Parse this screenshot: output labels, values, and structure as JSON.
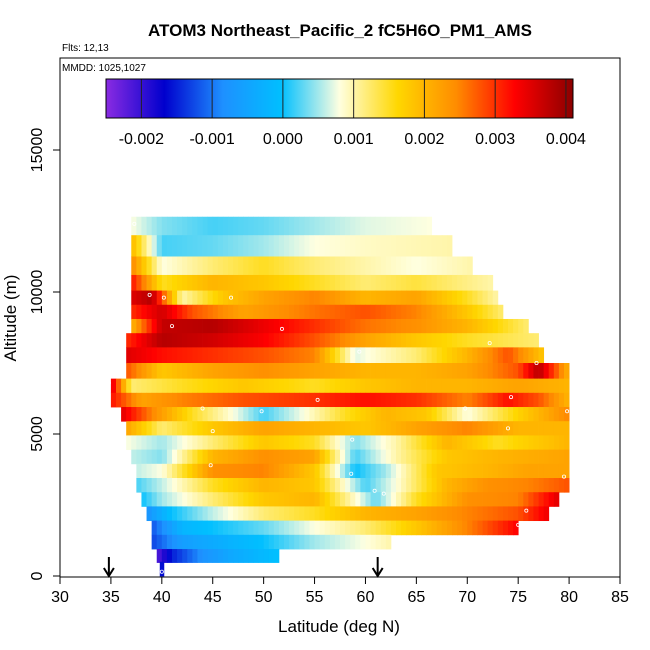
{
  "chart_data": {
    "type": "heatmap",
    "title": "ATOM3 Northeast_Pacific_2 fC5H6O_PM1_AMS",
    "flights_label": "Flts: 12,13",
    "dates_label": "MMDD: 1025,1027",
    "xlabel": "Latitude (deg N)",
    "ylabel": "Altitude (m)",
    "xlim": [
      30,
      85
    ],
    "ylim": [
      0,
      17500
    ],
    "x_ticks": [
      "30",
      "35",
      "40",
      "45",
      "50",
      "55",
      "60",
      "65",
      "70",
      "75",
      "80",
      "85"
    ],
    "y_ticks": [
      "0",
      "5000",
      "10000",
      "15000"
    ],
    "colorbar": {
      "range": [
        -0.0025,
        0.0041
      ],
      "ticks": [
        "-0.002",
        "-0.001",
        "0.000",
        "0.001",
        "0.002",
        "0.003",
        "0.004"
      ],
      "colors": [
        "#8a2be2",
        "#0000cd",
        "#1e90ff",
        "#00bfff",
        "#ffffe0",
        "#ffd700",
        "#ff8c00",
        "#ff0000",
        "#8b0000"
      ]
    },
    "arrows_latitude": [
      34.8,
      61.2
    ],
    "layers": [
      {
        "alt": 12400,
        "lat_min": 37.0,
        "lat_max": 66.5,
        "values": [
          [
            37,
            0.0008
          ],
          [
            40,
            0.0004
          ],
          [
            45,
            0.0002
          ],
          [
            50,
            0.0003
          ],
          [
            55,
            0.0005
          ],
          [
            60,
            0.0007
          ],
          [
            66.5,
            0.0008
          ]
        ]
      },
      {
        "alt": 11600,
        "lat_min": 37.0,
        "lat_max": 68.5,
        "values": [
          [
            37,
            0.002
          ],
          [
            40,
            0.0002
          ],
          [
            45,
            0.0003
          ],
          [
            50,
            0.0005
          ],
          [
            55,
            0.0008
          ],
          [
            60,
            0.0009
          ],
          [
            68.5,
            0.001
          ]
        ]
      },
      {
        "alt": 10900,
        "lat_min": 37.0,
        "lat_max": 70.5,
        "values": [
          [
            37,
            0.0025
          ],
          [
            40,
            0.0008
          ],
          [
            45,
            0.0012
          ],
          [
            50,
            0.0015
          ],
          [
            55,
            0.0012
          ],
          [
            60,
            0.001
          ],
          [
            65,
            0.0008
          ],
          [
            70.5,
            0.001
          ]
        ]
      },
      {
        "alt": 10300,
        "lat_min": 37.0,
        "lat_max": 72.5,
        "values": [
          [
            37,
            0.0032
          ],
          [
            40,
            0.0015
          ],
          [
            45,
            0.002
          ],
          [
            50,
            0.0018
          ],
          [
            55,
            0.0015
          ],
          [
            60,
            0.0012
          ],
          [
            65,
            0.0014
          ],
          [
            72.5,
            0.001
          ]
        ]
      },
      {
        "alt": 9800,
        "lat_min": 37.0,
        "lat_max": 73.0,
        "values": [
          [
            37,
            0.0035
          ],
          [
            39,
            0.0038
          ],
          [
            42,
            0.001
          ],
          [
            46,
            0.0018
          ],
          [
            50,
            0.0022
          ],
          [
            55,
            0.0025
          ],
          [
            60,
            0.002
          ],
          [
            65,
            0.0022
          ],
          [
            70,
            0.0015
          ],
          [
            73,
            0.001
          ]
        ]
      },
      {
        "alt": 9300,
        "lat_min": 37.0,
        "lat_max": 73.5,
        "values": [
          [
            37,
            0.003
          ],
          [
            40,
            0.0036
          ],
          [
            43,
            0.0028
          ],
          [
            48,
            0.0022
          ],
          [
            55,
            0.0026
          ],
          [
            60,
            0.0028
          ],
          [
            65,
            0.0025
          ],
          [
            70,
            0.0018
          ],
          [
            73.5,
            0.0012
          ]
        ]
      },
      {
        "alt": 8800,
        "lat_min": 37.0,
        "lat_max": 76.0,
        "values": [
          [
            37,
            0.002
          ],
          [
            40,
            0.0037
          ],
          [
            45,
            0.0038
          ],
          [
            50,
            0.0034
          ],
          [
            55,
            0.003
          ],
          [
            60,
            0.0026
          ],
          [
            65,
            0.0024
          ],
          [
            70,
            0.002
          ],
          [
            76,
            0.0012
          ]
        ]
      },
      {
        "alt": 8300,
        "lat_min": 36.5,
        "lat_max": 77.0,
        "values": [
          [
            36.5,
            0.003
          ],
          [
            40,
            0.0038
          ],
          [
            45,
            0.0036
          ],
          [
            50,
            0.0033
          ],
          [
            55,
            0.0028
          ],
          [
            60,
            0.0022
          ],
          [
            65,
            0.0018
          ],
          [
            70,
            0.0015
          ],
          [
            77,
            0.0012
          ]
        ]
      },
      {
        "alt": 7800,
        "lat_min": 36.5,
        "lat_max": 77.5,
        "values": [
          [
            36.5,
            0.0035
          ],
          [
            40,
            0.0032
          ],
          [
            45,
            0.003
          ],
          [
            50,
            0.0028
          ],
          [
            55,
            0.0025
          ],
          [
            59,
            0.0007
          ],
          [
            65,
            0.0012
          ],
          [
            70,
            0.002
          ],
          [
            74,
            0.0028
          ],
          [
            77.5,
            0.0018
          ]
        ]
      },
      {
        "alt": 7200,
        "lat_min": 36.5,
        "lat_max": 80.0,
        "values": [
          [
            36.5,
            0.0028
          ],
          [
            40,
            0.0018
          ],
          [
            45,
            0.0022
          ],
          [
            50,
            0.0024
          ],
          [
            55,
            0.0022
          ],
          [
            60,
            0.002
          ],
          [
            65,
            0.002
          ],
          [
            70,
            0.0022
          ],
          [
            75,
            0.0028
          ],
          [
            77,
            0.0038
          ],
          [
            80,
            0.002
          ]
        ]
      },
      {
        "alt": 6700,
        "lat_min": 35.0,
        "lat_max": 80.0,
        "values": [
          [
            35,
            0.0036
          ],
          [
            37,
            0.0012
          ],
          [
            42,
            0.0015
          ],
          [
            48,
            0.0018
          ],
          [
            55,
            0.0015
          ],
          [
            60,
            0.0018
          ],
          [
            65,
            0.002
          ],
          [
            70,
            0.002
          ],
          [
            75,
            0.0022
          ],
          [
            80,
            0.002
          ]
        ]
      },
      {
        "alt": 6200,
        "lat_min": 35.0,
        "lat_max": 80.0,
        "values": [
          [
            35,
            0.0032
          ],
          [
            38,
            0.0022
          ],
          [
            42,
            0.0025
          ],
          [
            48,
            0.0028
          ],
          [
            55,
            0.003
          ],
          [
            60,
            0.0032
          ],
          [
            65,
            0.003
          ],
          [
            70,
            0.0025
          ],
          [
            74,
            0.0032
          ],
          [
            77,
            0.0028
          ],
          [
            80,
            0.002
          ]
        ]
      },
      {
        "alt": 5700,
        "lat_min": 36.0,
        "lat_max": 80.0,
        "values": [
          [
            36,
            0.0035
          ],
          [
            39,
            0.0025
          ],
          [
            43,
            0.0015
          ],
          [
            47,
            0.0008
          ],
          [
            50,
            0.0002
          ],
          [
            54,
            0.0008
          ],
          [
            58,
            0.0015
          ],
          [
            62,
            0.002
          ],
          [
            66,
            0.0018
          ],
          [
            70,
            0.0008
          ],
          [
            74,
            0.0015
          ],
          [
            80,
            0.0025
          ]
        ]
      },
      {
        "alt": 5200,
        "lat_min": 36.5,
        "lat_max": 80.0,
        "values": [
          [
            36.5,
            0.0022
          ],
          [
            40,
            0.0012
          ],
          [
            45,
            0.0018
          ],
          [
            50,
            0.0022
          ],
          [
            55,
            0.002
          ],
          [
            60,
            0.0018
          ],
          [
            65,
            0.0022
          ],
          [
            70,
            0.0025
          ],
          [
            75,
            0.002
          ],
          [
            80,
            0.002
          ]
        ]
      },
      {
        "alt": 4700,
        "lat_min": 36.5,
        "lat_max": 80.0,
        "values": [
          [
            36.5,
            0.0008
          ],
          [
            40,
            0.0005
          ],
          [
            45,
            0.0012
          ],
          [
            50,
            0.0018
          ],
          [
            55,
            0.0015
          ],
          [
            59,
            0.0004
          ],
          [
            63,
            0.001
          ],
          [
            68,
            0.002
          ],
          [
            73,
            0.0015
          ],
          [
            77,
            0.0018
          ],
          [
            80,
            0.002
          ]
        ]
      },
      {
        "alt": 4200,
        "lat_min": 37.0,
        "lat_max": 80.0,
        "values": [
          [
            37,
            0.0006
          ],
          [
            40,
            0.0004
          ],
          [
            45,
            0.002
          ],
          [
            50,
            0.0024
          ],
          [
            55,
            0.0022
          ],
          [
            59,
            0.0002
          ],
          [
            63,
            0.001
          ],
          [
            68,
            0.0018
          ],
          [
            73,
            0.002
          ],
          [
            80,
            0.0022
          ]
        ]
      },
      {
        "alt": 3700,
        "lat_min": 37.5,
        "lat_max": 80.0,
        "values": [
          [
            37.5,
            0.0006
          ],
          [
            40,
            0.0008
          ],
          [
            45,
            0.0024
          ],
          [
            50,
            0.0025
          ],
          [
            55,
            0.0018
          ],
          [
            59,
            0.0
          ],
          [
            62,
            0.0005
          ],
          [
            67,
            0.0018
          ],
          [
            72,
            0.002
          ],
          [
            76,
            0.0022
          ],
          [
            80,
            0.0022
          ]
        ]
      },
      {
        "alt": 3200,
        "lat_min": 37.5,
        "lat_max": 80.0,
        "values": [
          [
            37.5,
            0.0002
          ],
          [
            40,
            0.0006
          ],
          [
            45,
            0.0015
          ],
          [
            50,
            0.002
          ],
          [
            55,
            0.0018
          ],
          [
            60,
            0.0002
          ],
          [
            63,
            0.0008
          ],
          [
            68,
            0.002
          ],
          [
            72,
            0.0024
          ],
          [
            76,
            0.0025
          ],
          [
            80,
            0.0028
          ]
        ]
      },
      {
        "alt": 2700,
        "lat_min": 38.0,
        "lat_max": 79.0,
        "values": [
          [
            38,
            0.0
          ],
          [
            40,
            0.0005
          ],
          [
            45,
            0.0012
          ],
          [
            50,
            0.0018
          ],
          [
            55,
            0.002
          ],
          [
            61,
            0.0003
          ],
          [
            65,
            0.0015
          ],
          [
            70,
            0.0024
          ],
          [
            75,
            0.0025
          ],
          [
            79,
            0.0035
          ]
        ]
      },
      {
        "alt": 2200,
        "lat_min": 38.5,
        "lat_max": 78.0,
        "values": [
          [
            38.5,
            -0.0008
          ],
          [
            41,
            0.0
          ],
          [
            45,
            0.0006
          ],
          [
            50,
            0.0012
          ],
          [
            55,
            0.0015
          ],
          [
            60,
            0.002
          ],
          [
            65,
            0.0022
          ],
          [
            70,
            0.0025
          ],
          [
            75,
            0.0028
          ],
          [
            78,
            0.0034
          ]
        ]
      },
      {
        "alt": 1700,
        "lat_min": 39.0,
        "lat_max": 75.0,
        "values": [
          [
            39,
            -0.0012
          ],
          [
            42,
            -0.0002
          ],
          [
            45,
            0.0
          ],
          [
            50,
            0.0003
          ],
          [
            55,
            0.0008
          ],
          [
            60,
            0.0012
          ],
          [
            65,
            0.0018
          ],
          [
            70,
            0.0025
          ],
          [
            75,
            0.0033
          ]
        ]
      },
      {
        "alt": 1200,
        "lat_min": 39.0,
        "lat_max": 62.5,
        "values": [
          [
            39,
            -0.0013
          ],
          [
            42,
            -0.0006
          ],
          [
            46,
            -0.0003
          ],
          [
            50,
            0.0
          ],
          [
            55,
            0.0005
          ],
          [
            60,
            0.0008
          ],
          [
            62.5,
            0.001
          ]
        ]
      },
      {
        "alt": 700,
        "lat_min": 39.5,
        "lat_max": 51.5,
        "values": [
          [
            39.5,
            -0.0022
          ],
          [
            41,
            -0.0015
          ],
          [
            44,
            -0.0008
          ],
          [
            47,
            -0.0004
          ],
          [
            51.5,
            0.0
          ]
        ]
      },
      {
        "alt": 250,
        "lat_min": 39.8,
        "lat_max": 40.2,
        "values": [
          [
            39.8,
            -0.0016
          ],
          [
            40.2,
            -0.0016
          ]
        ]
      }
    ],
    "sample_points": [
      {
        "lat": 37.3,
        "alt": 12400
      },
      {
        "lat": 38.8,
        "alt": 9900
      },
      {
        "lat": 40.2,
        "alt": 9800
      },
      {
        "lat": 41.0,
        "alt": 8800
      },
      {
        "lat": 46.8,
        "alt": 9800
      },
      {
        "lat": 51.8,
        "alt": 8700
      },
      {
        "lat": 59.4,
        "alt": 7900
      },
      {
        "lat": 72.2,
        "alt": 8200
      },
      {
        "lat": 76.8,
        "alt": 7500
      },
      {
        "lat": 34.8,
        "alt": 6800
      },
      {
        "lat": 44.0,
        "alt": 5900
      },
      {
        "lat": 49.8,
        "alt": 5800
      },
      {
        "lat": 55.3,
        "alt": 6200
      },
      {
        "lat": 69.8,
        "alt": 5900
      },
      {
        "lat": 74.3,
        "alt": 6300
      },
      {
        "lat": 79.8,
        "alt": 5800
      },
      {
        "lat": 45.0,
        "alt": 5100
      },
      {
        "lat": 58.7,
        "alt": 4800
      },
      {
        "lat": 74.0,
        "alt": 5200
      },
      {
        "lat": 44.8,
        "alt": 3900
      },
      {
        "lat": 58.6,
        "alt": 3600
      },
      {
        "lat": 60.9,
        "alt": 3000
      },
      {
        "lat": 61.8,
        "alt": 2900
      },
      {
        "lat": 79.5,
        "alt": 3500
      },
      {
        "lat": 75.8,
        "alt": 2300
      },
      {
        "lat": 75.0,
        "alt": 1800
      },
      {
        "lat": 40.0,
        "alt": 150
      }
    ]
  }
}
